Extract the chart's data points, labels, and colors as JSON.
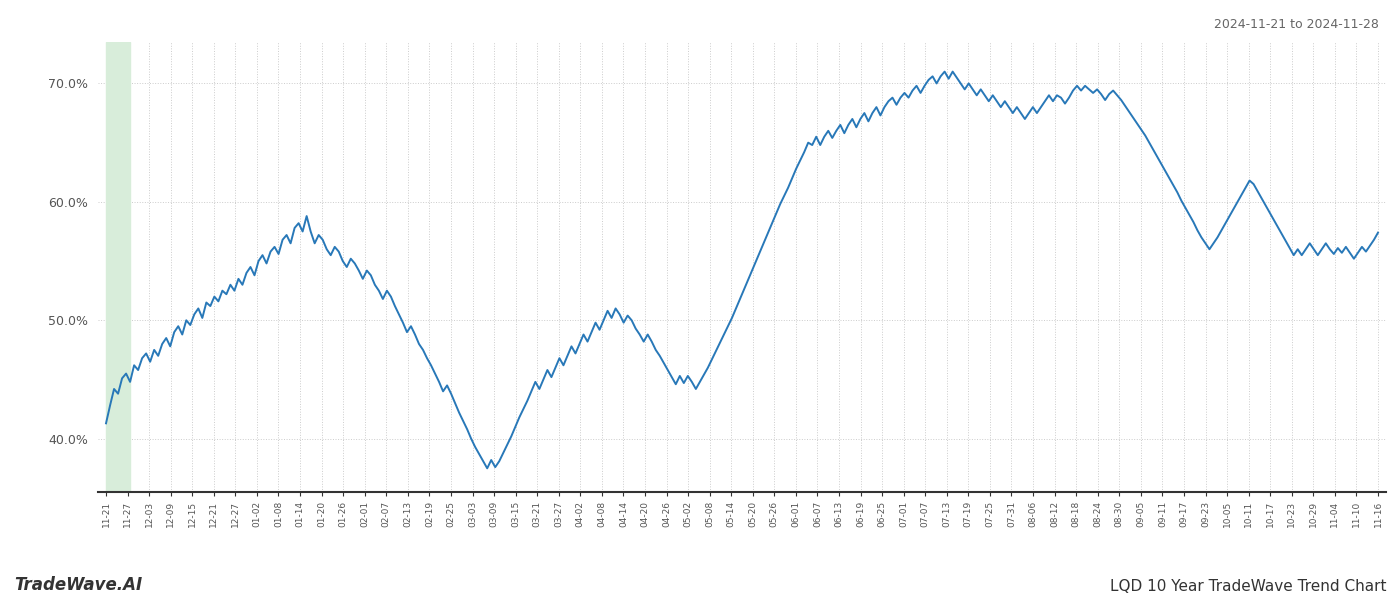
{
  "title_top_right": "2024-11-21 to 2024-11-28",
  "title_bottom_left": "TradeWave.AI",
  "title_bottom_right": "LQD 10 Year TradeWave Trend Chart",
  "line_color": "#2878b8",
  "highlight_color": "#d8edda",
  "highlight_alpha": 1.0,
  "background_color": "#ffffff",
  "grid_color": "#cccccc",
  "ylim": [
    0.355,
    0.735
  ],
  "yticks": [
    0.4,
    0.5,
    0.6,
    0.7
  ],
  "ytick_labels": [
    "40.0%",
    "50.0%",
    "60.0%",
    "70.0%"
  ],
  "xtick_labels": [
    "11-21",
    "11-27",
    "12-03",
    "12-09",
    "12-15",
    "12-21",
    "12-27",
    "01-02",
    "01-08",
    "01-14",
    "01-20",
    "01-26",
    "02-01",
    "02-07",
    "02-13",
    "02-19",
    "02-25",
    "03-03",
    "03-09",
    "03-15",
    "03-21",
    "03-27",
    "04-02",
    "04-08",
    "04-14",
    "04-20",
    "04-26",
    "05-02",
    "05-08",
    "05-14",
    "05-20",
    "05-26",
    "06-01",
    "06-07",
    "06-13",
    "06-19",
    "06-25",
    "07-01",
    "07-07",
    "07-13",
    "07-19",
    "07-25",
    "07-31",
    "08-06",
    "08-12",
    "08-18",
    "08-24",
    "08-30",
    "09-05",
    "09-11",
    "09-17",
    "09-23",
    "10-05",
    "10-11",
    "10-17",
    "10-23",
    "10-29",
    "11-04",
    "11-10",
    "11-16"
  ],
  "values": [
    0.413,
    0.428,
    0.442,
    0.438,
    0.451,
    0.455,
    0.448,
    0.462,
    0.458,
    0.468,
    0.472,
    0.465,
    0.475,
    0.47,
    0.48,
    0.485,
    0.478,
    0.49,
    0.495,
    0.488,
    0.5,
    0.496,
    0.505,
    0.51,
    0.502,
    0.515,
    0.512,
    0.52,
    0.516,
    0.525,
    0.522,
    0.53,
    0.525,
    0.535,
    0.53,
    0.54,
    0.545,
    0.538,
    0.55,
    0.555,
    0.548,
    0.558,
    0.562,
    0.556,
    0.568,
    0.572,
    0.565,
    0.578,
    0.582,
    0.575,
    0.588,
    0.575,
    0.565,
    0.572,
    0.568,
    0.56,
    0.555,
    0.562,
    0.558,
    0.55,
    0.545,
    0.552,
    0.548,
    0.542,
    0.535,
    0.542,
    0.538,
    0.53,
    0.525,
    0.518,
    0.525,
    0.52,
    0.512,
    0.505,
    0.498,
    0.49,
    0.495,
    0.488,
    0.48,
    0.475,
    0.468,
    0.462,
    0.455,
    0.448,
    0.44,
    0.445,
    0.438,
    0.43,
    0.422,
    0.415,
    0.408,
    0.4,
    0.393,
    0.387,
    0.381,
    0.375,
    0.382,
    0.376,
    0.381,
    0.388,
    0.395,
    0.402,
    0.41,
    0.418,
    0.425,
    0.432,
    0.44,
    0.448,
    0.442,
    0.45,
    0.458,
    0.452,
    0.46,
    0.468,
    0.462,
    0.47,
    0.478,
    0.472,
    0.48,
    0.488,
    0.482,
    0.49,
    0.498,
    0.492,
    0.5,
    0.508,
    0.502,
    0.51,
    0.505,
    0.498,
    0.504,
    0.5,
    0.493,
    0.488,
    0.482,
    0.488,
    0.482,
    0.475,
    0.47,
    0.464,
    0.458,
    0.452,
    0.446,
    0.453,
    0.447,
    0.453,
    0.448,
    0.442,
    0.448,
    0.454,
    0.46,
    0.467,
    0.474,
    0.481,
    0.488,
    0.495,
    0.502,
    0.51,
    0.518,
    0.526,
    0.534,
    0.542,
    0.55,
    0.558,
    0.566,
    0.574,
    0.582,
    0.59,
    0.598,
    0.605,
    0.612,
    0.62,
    0.628,
    0.635,
    0.642,
    0.65,
    0.648,
    0.655,
    0.648,
    0.655,
    0.66,
    0.654,
    0.66,
    0.665,
    0.658,
    0.665,
    0.67,
    0.663,
    0.67,
    0.675,
    0.668,
    0.675,
    0.68,
    0.673,
    0.68,
    0.685,
    0.688,
    0.682,
    0.688,
    0.692,
    0.688,
    0.694,
    0.698,
    0.692,
    0.698,
    0.703,
    0.706,
    0.7,
    0.706,
    0.71,
    0.704,
    0.71,
    0.705,
    0.7,
    0.695,
    0.7,
    0.695,
    0.69,
    0.695,
    0.69,
    0.685,
    0.69,
    0.685,
    0.68,
    0.685,
    0.68,
    0.675,
    0.68,
    0.675,
    0.67,
    0.675,
    0.68,
    0.675,
    0.68,
    0.685,
    0.69,
    0.685,
    0.69,
    0.688,
    0.683,
    0.688,
    0.694,
    0.698,
    0.694,
    0.698,
    0.695,
    0.692,
    0.695,
    0.691,
    0.686,
    0.691,
    0.694,
    0.69,
    0.686,
    0.681,
    0.676,
    0.671,
    0.666,
    0.661,
    0.656,
    0.65,
    0.644,
    0.638,
    0.632,
    0.626,
    0.62,
    0.614,
    0.608,
    0.601,
    0.595,
    0.589,
    0.583,
    0.576,
    0.57,
    0.565,
    0.56,
    0.565,
    0.57,
    0.576,
    0.582,
    0.588,
    0.594,
    0.6,
    0.606,
    0.612,
    0.618,
    0.615,
    0.609,
    0.603,
    0.597,
    0.591,
    0.585,
    0.579,
    0.573,
    0.567,
    0.561,
    0.555,
    0.56,
    0.555,
    0.56,
    0.565,
    0.56,
    0.555,
    0.56,
    0.565,
    0.56,
    0.556,
    0.561,
    0.557,
    0.562,
    0.557,
    0.552,
    0.557,
    0.562,
    0.558,
    0.563,
    0.568,
    0.574
  ],
  "highlight_xstart": 0,
  "highlight_xend": 6,
  "line_width": 1.4
}
